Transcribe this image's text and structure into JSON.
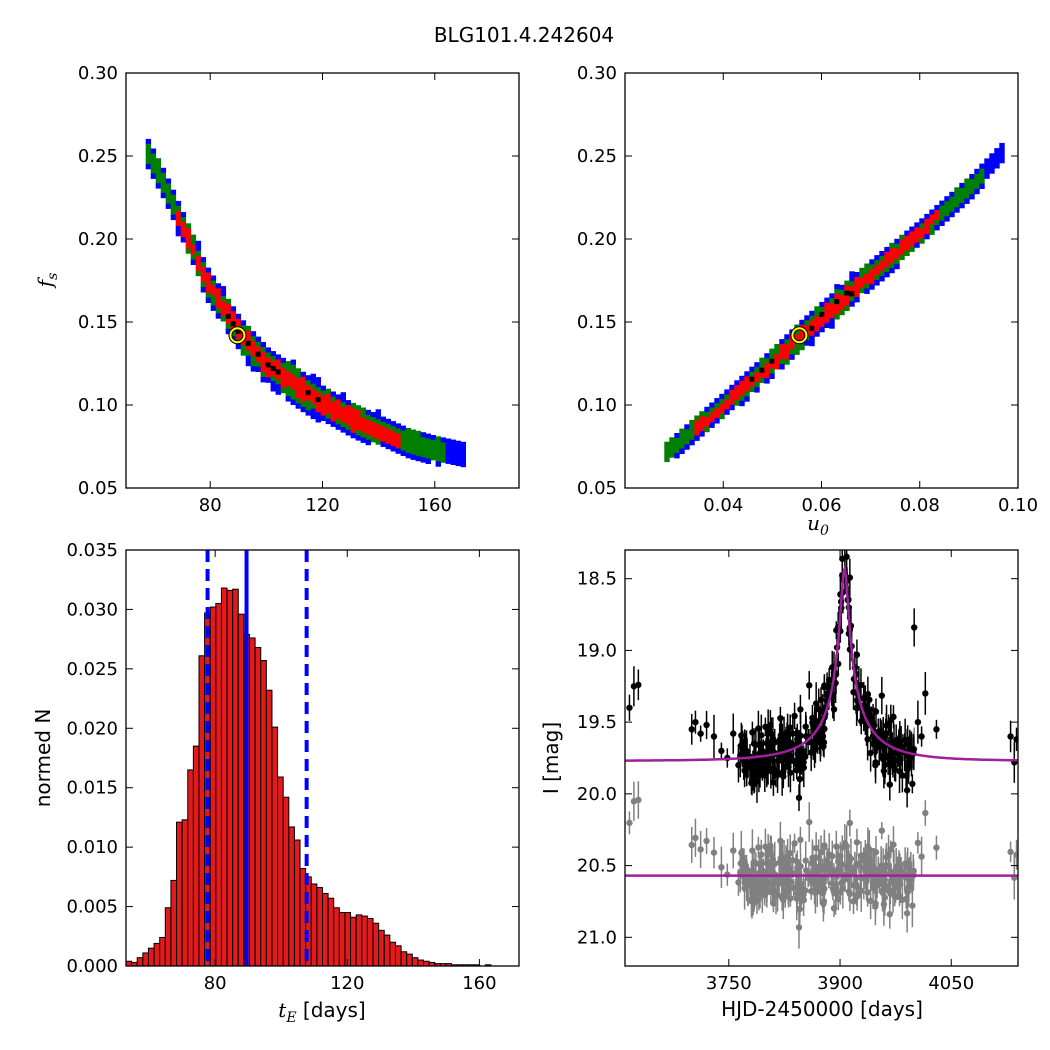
{
  "title": "BLG101.4.242604",
  "colors": {
    "blue": "#0000ff",
    "green": "#007f00",
    "red": "#ff0000",
    "black": "#000000",
    "bar_fill": "#e31a1c",
    "model": "#a01ea0",
    "gray": "#808080",
    "best_fit_marker": "#ffff00"
  },
  "chart_data": [
    {
      "id": "fs_vs_tE",
      "type": "heatmap",
      "xlabel": "",
      "ylabel": "f",
      "ylabel_sub": "s",
      "xlim": [
        50,
        190
      ],
      "ylim": [
        0.05,
        0.3
      ],
      "xticks": [
        80,
        120,
        160
      ],
      "yticks": [
        "0.05",
        "0.10",
        "0.15",
        "0.20",
        "0.25",
        "0.30"
      ],
      "levels": [
        "blue",
        "green",
        "red",
        "black"
      ],
      "ridge": [
        [
          57,
          0.252
        ],
        [
          63,
          0.232
        ],
        [
          70,
          0.205
        ],
        [
          78,
          0.174
        ],
        [
          85,
          0.155
        ],
        [
          90,
          0.142
        ],
        [
          100,
          0.123
        ],
        [
          110,
          0.111
        ],
        [
          120,
          0.1
        ],
        [
          130,
          0.091
        ],
        [
          140,
          0.084
        ],
        [
          150,
          0.077
        ],
        [
          160,
          0.073
        ],
        [
          170,
          0.07
        ]
      ],
      "best_fit": [
        89.7,
        0.142
      ]
    },
    {
      "id": "fs_vs_u0",
      "type": "heatmap",
      "xlabel": "u",
      "xlabel_sub": "0",
      "ylabel": "",
      "xlim": [
        0.02,
        0.1
      ],
      "ylim": [
        0.05,
        0.3
      ],
      "xticks": [
        "0.04",
        "0.06",
        "0.08",
        "0.10"
      ],
      "yticks": [
        "0.05",
        "0.10",
        "0.15",
        "0.20",
        "0.25",
        "0.30"
      ],
      "levels": [
        "blue",
        "green",
        "red",
        "black"
      ],
      "ridge": [
        [
          0.028,
          0.071
        ],
        [
          0.04,
          0.101
        ],
        [
          0.05,
          0.127
        ],
        [
          0.055,
          0.141
        ],
        [
          0.06,
          0.154
        ],
        [
          0.07,
          0.18
        ],
        [
          0.08,
          0.205
        ],
        [
          0.09,
          0.232
        ],
        [
          0.097,
          0.254
        ]
      ],
      "best_fit": [
        0.0555,
        0.142
      ]
    },
    {
      "id": "tE_histogram",
      "type": "bar",
      "xlabel": "t",
      "xlabel_sub": "E",
      "xlabel_rest": " [days]",
      "ylabel": "normed N",
      "xlim": [
        53,
        172
      ],
      "ylim": [
        0,
        0.035
      ],
      "xticks": [
        80,
        120,
        160
      ],
      "yticks": [
        "0.000",
        "0.005",
        "0.010",
        "0.015",
        "0.020",
        "0.025",
        "0.030",
        "0.035"
      ],
      "bin_start": 53,
      "bin_width": 1.7,
      "values": [
        0.0004,
        0.0003,
        0.0007,
        0.0011,
        0.0015,
        0.0019,
        0.0024,
        0.0049,
        0.0072,
        0.0121,
        0.0123,
        0.0165,
        0.0185,
        0.0261,
        0.0297,
        0.0302,
        0.0305,
        0.0318,
        0.0316,
        0.0317,
        0.0296,
        0.0279,
        0.0276,
        0.0268,
        0.0257,
        0.0232,
        0.0201,
        0.0159,
        0.0142,
        0.0117,
        0.0106,
        0.0082,
        0.0075,
        0.0069,
        0.0066,
        0.0061,
        0.0057,
        0.0049,
        0.0045,
        0.0045,
        0.0041,
        0.0043,
        0.0042,
        0.004,
        0.0036,
        0.003,
        0.0026,
        0.002,
        0.0017,
        0.0012,
        0.001,
        0.0007,
        0.0005,
        0.0004,
        0.0003,
        0.0002,
        0.0002,
        0.0002,
        0.0001,
        0.0001,
        0.0001,
        0.0001,
        0.0001,
        0.0,
        0.0001,
        0.0,
        0.0,
        0.0,
        0.0,
        0.0
      ],
      "vlines": [
        {
          "x": 89.5,
          "style": "solid"
        },
        {
          "x": 77.7,
          "style": "dashed"
        },
        {
          "x": 107.7,
          "style": "dashed"
        }
      ]
    },
    {
      "id": "lightcurve",
      "type": "scatter",
      "xlabel": "HJD-2450000 [days]",
      "ylabel": "I [mag]",
      "xlim": [
        3610,
        4140
      ],
      "ylim": [
        21.2,
        18.3
      ],
      "xticks": [
        3750,
        3900,
        4050
      ],
      "yticks": [
        "18.5",
        "19.0",
        "19.5",
        "20.0",
        "20.5",
        "21.0"
      ],
      "model": {
        "t0": 3906,
        "tE": 89.7,
        "u0": 0.0555,
        "fs": 0.142,
        "baseline_mag": 19.77
      },
      "gray_offset_mag": 0.8,
      "gray_baseline_mag": 20.57,
      "early_points": [
        [
          3616,
          19.4
        ],
        [
          3622,
          19.25
        ],
        [
          3628,
          19.24
        ],
        [
          3700,
          19.55
        ],
        [
          3705,
          19.5
        ],
        [
          3712,
          19.58
        ],
        [
          3720,
          19.52
        ],
        [
          3730,
          19.6
        ],
        [
          3740,
          19.7
        ],
        [
          3748,
          19.75
        ],
        [
          3756,
          19.58
        ],
        [
          3763,
          19.8
        ]
      ],
      "late_points": [
        [
          4000,
          18.84
        ],
        [
          4005,
          19.5
        ],
        [
          4010,
          19.6
        ],
        [
          4015,
          19.3
        ],
        [
          4030,
          19.55
        ],
        [
          4130,
          19.6
        ],
        [
          4135,
          19.78
        ],
        [
          4138,
          19.62
        ]
      ]
    }
  ]
}
